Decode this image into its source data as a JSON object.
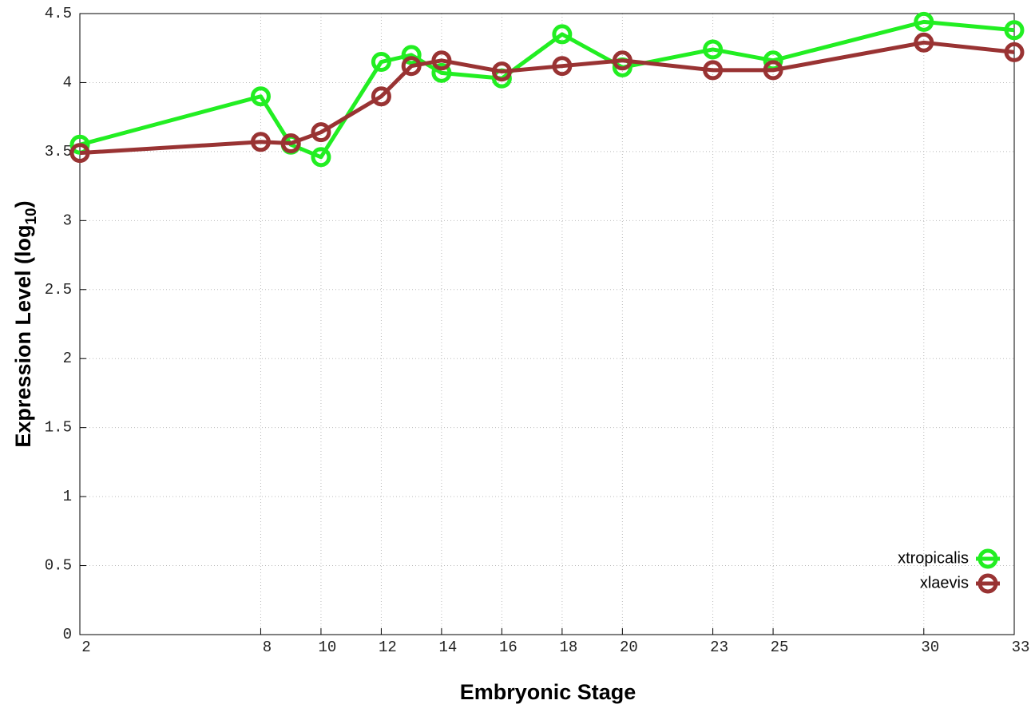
{
  "chart_data": {
    "type": "line",
    "x_label": "Embryonic Stage",
    "y_label": [
      "Expression Level (log",
      "10",
      ")"
    ],
    "x": [
      2,
      8,
      9,
      10,
      12,
      13,
      14,
      16,
      18,
      20,
      23,
      25,
      30,
      33
    ],
    "series": [
      {
        "name": "xtropicalis",
        "color": "#22ee22",
        "values": [
          3.55,
          3.9,
          3.55,
          3.46,
          4.15,
          4.2,
          4.07,
          4.03,
          4.35,
          4.11,
          4.24,
          4.16,
          4.44,
          4.38
        ]
      },
      {
        "name": "xlaevis",
        "color": "#993333",
        "values": [
          3.49,
          3.57,
          3.56,
          3.64,
          3.9,
          4.12,
          4.16,
          4.08,
          4.12,
          4.16,
          4.09,
          4.09,
          4.29,
          4.22
        ]
      }
    ],
    "xlim": [
      2,
      33
    ],
    "xticks": [
      2,
      8,
      10,
      12,
      14,
      16,
      18,
      20,
      23,
      25,
      30,
      33
    ],
    "ylim": [
      0,
      4.5
    ],
    "yticks": [
      0,
      0.5,
      1,
      1.5,
      2,
      2.5,
      3,
      3.5,
      4,
      4.5
    ],
    "grid": true,
    "legend": "bottom-right"
  }
}
